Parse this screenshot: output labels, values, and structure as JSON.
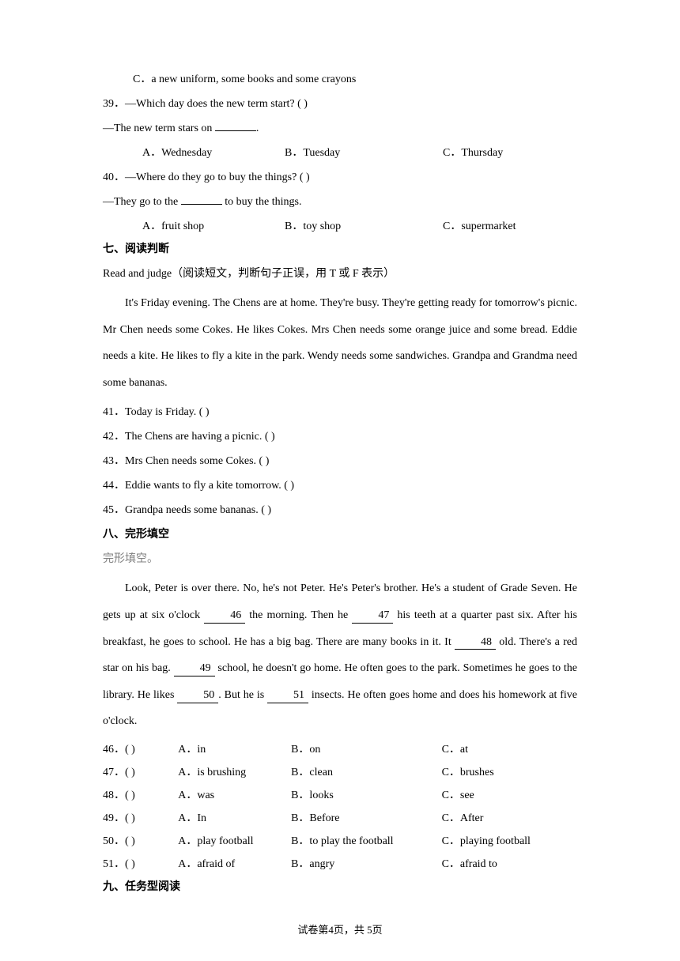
{
  "q38": {
    "optC": "C．a new uniform, some books and some crayons"
  },
  "q39": {
    "stem1": "39．—Which day does the new term start? (          )",
    "stem2": "—The new term stars on ",
    "stem2_end": ".",
    "optA": "A．Wednesday",
    "optB": "B．Tuesday",
    "optC": "C．Thursday"
  },
  "q40": {
    "stem1": "40．—Where do they go to buy the things? (          )",
    "stem2a": "—They go to the ",
    "stem2b": " to buy the things.",
    "optA": "A．fruit shop",
    "optB": "B．toy shop",
    "optC": "C．supermarket"
  },
  "section7": {
    "title": "七、阅读判断",
    "instruction": "Read and judge（阅读短文，判断句子正误，用 T 或 F 表示）",
    "passage": "It's Friday evening. The Chens are at home. They're busy. They're getting ready for tomorrow's picnic. Mr Chen needs some Cokes. He likes Cokes. Mrs Chen needs some orange juice and some bread. Eddie needs a kite. He likes to fly a kite in the park. Wendy needs some sandwiches. Grandpa and Grandma need some bananas.",
    "q41": "41．Today is Friday.          (          )",
    "q42": "42．The Chens are having a picnic. (          )",
    "q43": "43．Mrs Chen needs some Cokes.    (          )",
    "q44": "44．Eddie wants to fly a kite tomorrow. (          )",
    "q45": "45．Grandpa needs some bananas. (          )"
  },
  "section8": {
    "title": "八、完形填空",
    "sub": "完形填空。",
    "p1a": "Look, Peter is over there. No, he's not Peter. He's Peter's brother. He's a student of Grade Seven. He gets up at six o'clock ",
    "b46": "    46    ",
    "p1b": " the morning. Then he ",
    "b47": "    47    ",
    "p1c": " his teeth at a quarter past six. After his breakfast, he goes to school. He has a big bag. There are many books in it. It ",
    "b48": "    48    ",
    "p1d": " old. There's a red star on his bag. ",
    "b49": "    49    ",
    "p1e": " school, he doesn't go home. He often goes to the park. Sometimes he goes to the library. He likes ",
    "b50": "    50    ",
    "p1f": ". But he is ",
    "b51": "    51    ",
    "p1g": " insects. He often goes home and does his homework at five o'clock.",
    "opts": [
      {
        "num": "46．(          )",
        "a": "A．in",
        "b": "B．on",
        "c": "C．at"
      },
      {
        "num": "47．(          )",
        "a": "A．is brushing",
        "b": "B．clean",
        "c": "C．brushes"
      },
      {
        "num": "48．(          )",
        "a": "A．was",
        "b": "B．looks",
        "c": "C．see"
      },
      {
        "num": "49．(          )",
        "a": "A．In",
        "b": "B．Before",
        "c": "C．After"
      },
      {
        "num": "50．(          )",
        "a": "A．play football",
        "b": "B．to play the football",
        "c": "C．playing football"
      },
      {
        "num": "51．(          )",
        "a": "A．afraid of",
        "b": "B．angry",
        "c": "C．afraid to"
      }
    ]
  },
  "section9": {
    "title": "九、任务型阅读"
  },
  "footer": "试卷第4页，共 5页"
}
